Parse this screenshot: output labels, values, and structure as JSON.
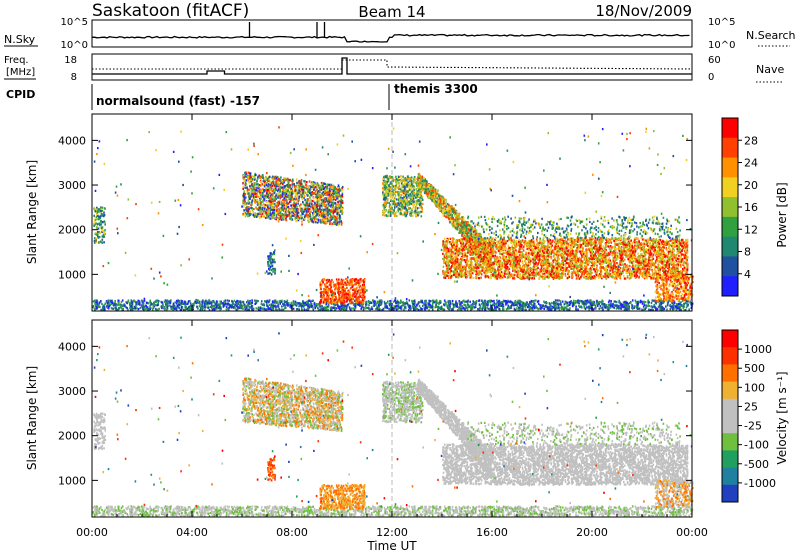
{
  "header": {
    "station": "Saskatoon (fitACF)",
    "beam": "Beam 14",
    "date": "18/Nov/2009"
  },
  "panels": {
    "nsky": {
      "left_label": "N.Sky",
      "right_label": "N.Search",
      "ticks": {
        "top": "10^5",
        "bottom": "10^0"
      }
    },
    "freq": {
      "left_label_line1": "Freq.",
      "left_label_line2": "[MHz]",
      "left_ticks": [
        "18",
        "8"
      ],
      "right_label": "Nave",
      "right_ticks": [
        "60",
        "0"
      ]
    },
    "cpid": {
      "label": "CPID",
      "mode1": "normalsound (fast) -157",
      "mode2": "themis 3300"
    }
  },
  "chart_data": [
    {
      "type": "heatmap",
      "name": "power",
      "ylabel": "Slant Range [km]",
      "yticks": [
        "4000",
        "3000",
        "2000",
        "1000"
      ],
      "ylim": [
        180,
        4590
      ],
      "xlim": [
        0,
        24
      ],
      "colorbar": {
        "label": "Power [dB]",
        "ticks": [
          "28",
          "24",
          "20",
          "16",
          "12",
          "8",
          "4"
        ],
        "colors": [
          "#2020ff",
          "#2050a0",
          "#208870",
          "#30a040",
          "#90c030",
          "#f0d020",
          "#ff9000",
          "#ff4000",
          "#ff0000"
        ]
      }
    },
    {
      "type": "heatmap",
      "name": "velocity",
      "ylabel": "Slant Range [km]",
      "yticks": [
        "4000",
        "3000",
        "2000",
        "1000"
      ],
      "ylim": [
        180,
        4590
      ],
      "xlim": [
        0,
        24
      ],
      "colorbar": {
        "label": "Velocity [m s⁻¹]",
        "ticks": [
          "1000",
          "500",
          "100",
          "25",
          "-25",
          "-100",
          "-500",
          "-1000"
        ],
        "colors": [
          "#2040c0",
          "#2080a0",
          "#20a060",
          "#70c040",
          "#c0c0c0",
          "#c0c0c0",
          "#f0b030",
          "#ff7000",
          "#ff3000",
          "#ff0000"
        ]
      }
    }
  ],
  "xaxis": {
    "ticks": [
      "00:00",
      "04:00",
      "08:00",
      "12:00",
      "16:00",
      "20:00",
      "00:00"
    ],
    "label": "Time UT"
  }
}
